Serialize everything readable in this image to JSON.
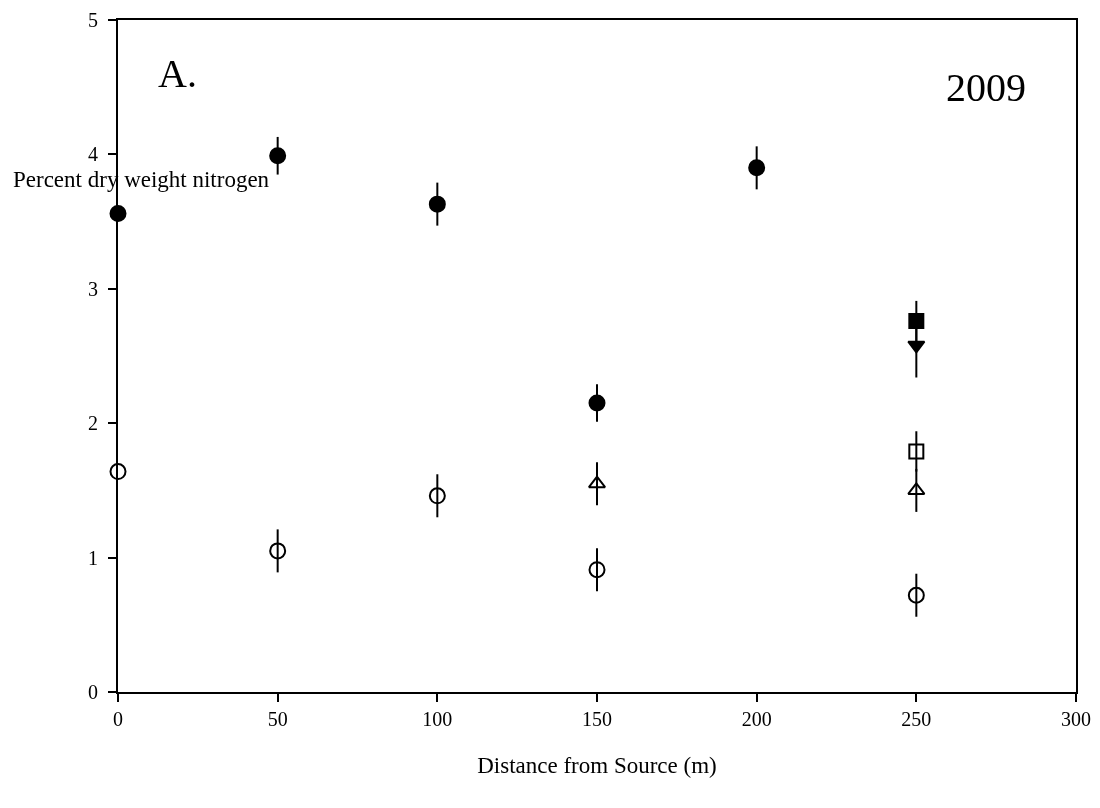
{
  "chart_data": {
    "type": "scatter",
    "xlabel": "Distance from Source (m)",
    "ylabel": "Percent dry weight nitrogen",
    "annotations": [
      "A.",
      "2009"
    ],
    "xlim": [
      0,
      300
    ],
    "xticks": [
      0,
      50,
      100,
      150,
      200,
      250,
      300
    ],
    "ylim": [
      0,
      5
    ],
    "yticks": [
      0,
      1,
      2,
      3,
      4,
      5
    ],
    "grid": false,
    "series": [
      {
        "color": "#000000",
        "marker": "circle",
        "x": [
          0,
          50,
          100,
          150,
          200
        ],
        "values": [
          3.56,
          3.99,
          3.63,
          2.15,
          3.9
        ],
        "errors": [
          null,
          0.14,
          0.16,
          0.14,
          0.16
        ]
      },
      {
        "color": "#000000",
        "marker": "square",
        "x": [
          250
        ],
        "values": [
          2.76
        ],
        "errors": [
          0.15
        ]
      },
      {
        "color": "#000000",
        "marker": "triangle-down",
        "x": [
          250
        ],
        "values": [
          2.58
        ],
        "errors": [
          0.24
        ]
      },
      {
        "color": "#000000",
        "marker": "circle-open",
        "x": [
          0,
          50,
          100,
          150,
          250
        ],
        "values": [
          1.64,
          1.05,
          1.46,
          0.91,
          0.72
        ],
        "errors": [
          null,
          0.16,
          0.16,
          0.16,
          0.16
        ]
      },
      {
        "color": "#000000",
        "marker": "triangle-up-open",
        "x": [
          150,
          250
        ],
        "values": [
          1.55,
          1.5
        ],
        "errors": [
          0.16,
          0.16
        ]
      },
      {
        "color": "#000000",
        "marker": "square-open",
        "x": [
          250
        ],
        "values": [
          1.79
        ],
        "errors": [
          0.15
        ]
      }
    ]
  }
}
